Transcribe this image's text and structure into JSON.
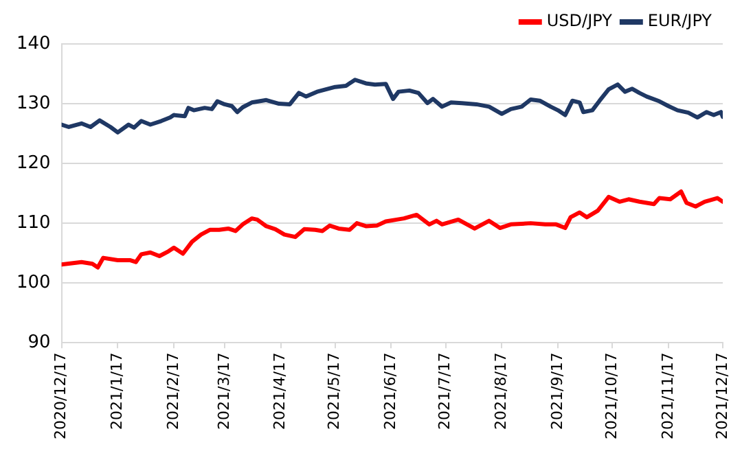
{
  "chart_data": {
    "type": "line",
    "ylim": [
      90,
      140
    ],
    "yticks": [
      90,
      100,
      110,
      120,
      130,
      140
    ],
    "xlim": [
      "2020-12-17",
      "2021-12-17"
    ],
    "xticks": [
      {
        "value": "2020-12-17",
        "label": "2020/12/17"
      },
      {
        "value": "2021-01-17",
        "label": "2021/1/17"
      },
      {
        "value": "2021-02-17",
        "label": "2021/2/17"
      },
      {
        "value": "2021-03-17",
        "label": "2021/3/17"
      },
      {
        "value": "2021-04-17",
        "label": "2021/4/17"
      },
      {
        "value": "2021-05-17",
        "label": "2021/5/17"
      },
      {
        "value": "2021-06-17",
        "label": "2021/6/17"
      },
      {
        "value": "2021-07-17",
        "label": "2021/7/17"
      },
      {
        "value": "2021-08-17",
        "label": "2021/8/17"
      },
      {
        "value": "2021-09-17",
        "label": "2021/9/17"
      },
      {
        "value": "2021-10-17",
        "label": "2021/10/17"
      },
      {
        "value": "2021-11-17",
        "label": "2021/11/17"
      },
      {
        "value": "2021-12-17",
        "label": "2021/12/17"
      }
    ],
    "grid": "y",
    "legend": "top right",
    "marker": "none",
    "line_style": "solid",
    "series": [
      {
        "name": "USD/JPY",
        "color": "#ff0000",
        "x": [
          "2020-12-17",
          "2020-12-28",
          "2021-01-03",
          "2021-01-06",
          "2021-01-09",
          "2021-01-17",
          "2021-01-24",
          "2021-01-27",
          "2021-01-30",
          "2021-02-04",
          "2021-02-09",
          "2021-02-14",
          "2021-02-17",
          "2021-02-22",
          "2021-02-27",
          "2021-03-04",
          "2021-03-09",
          "2021-03-14",
          "2021-03-19",
          "2021-03-23",
          "2021-03-27",
          "2021-04-01",
          "2021-04-04",
          "2021-04-09",
          "2021-04-14",
          "2021-04-19",
          "2021-04-25",
          "2021-04-30",
          "2021-05-06",
          "2021-05-10",
          "2021-05-14",
          "2021-05-19",
          "2021-05-25",
          "2021-05-29",
          "2021-06-03",
          "2021-06-09",
          "2021-06-14",
          "2021-06-20",
          "2021-06-24",
          "2021-07-01",
          "2021-07-08",
          "2021-07-12",
          "2021-07-15",
          "2021-07-24",
          "2021-08-02",
          "2021-08-10",
          "2021-08-16",
          "2021-08-22",
          "2021-09-02",
          "2021-09-10",
          "2021-09-16",
          "2021-09-21",
          "2021-09-24",
          "2021-09-29",
          "2021-10-03",
          "2021-10-09",
          "2021-10-15",
          "2021-10-21",
          "2021-10-26",
          "2021-11-01",
          "2021-11-09",
          "2021-11-12",
          "2021-11-18",
          "2021-11-24",
          "2021-11-27",
          "2021-12-02",
          "2021-12-07",
          "2021-12-14",
          "2021-12-17"
        ],
        "values": [
          103.1,
          103.5,
          103.2,
          102.6,
          104.2,
          103.8,
          103.8,
          103.5,
          104.8,
          105.1,
          104.5,
          105.3,
          105.9,
          104.9,
          106.9,
          108.1,
          108.9,
          108.9,
          109.1,
          108.7,
          109.8,
          110.8,
          110.6,
          109.5,
          109.0,
          108.1,
          107.7,
          109.0,
          108.9,
          108.7,
          109.6,
          109.1,
          108.9,
          110.0,
          109.5,
          109.6,
          110.3,
          110.6,
          110.8,
          111.4,
          109.8,
          110.4,
          109.8,
          110.6,
          109.1,
          110.4,
          109.2,
          109.8,
          110.0,
          109.8,
          109.8,
          109.2,
          111.0,
          111.8,
          111.0,
          112.1,
          114.4,
          113.6,
          114.0,
          113.6,
          113.2,
          114.2,
          114.0,
          115.3,
          113.4,
          112.8,
          113.6,
          114.2,
          113.6
        ]
      },
      {
        "name": "EUR/JPY",
        "color": "#1f3864",
        "x": [
          "2020-12-17",
          "2020-12-21",
          "2020-12-28",
          "2021-01-02",
          "2021-01-07",
          "2021-01-13",
          "2021-01-17",
          "2021-01-23",
          "2021-01-26",
          "2021-01-30",
          "2021-02-04",
          "2021-02-10",
          "2021-02-15",
          "2021-02-17",
          "2021-02-23",
          "2021-02-25",
          "2021-02-28",
          "2021-03-06",
          "2021-03-10",
          "2021-03-13",
          "2021-03-17",
          "2021-03-21",
          "2021-03-24",
          "2021-03-27",
          "2021-04-01",
          "2021-04-09",
          "2021-04-16",
          "2021-04-22",
          "2021-04-27",
          "2021-05-01",
          "2021-05-07",
          "2021-05-12",
          "2021-05-17",
          "2021-05-23",
          "2021-05-28",
          "2021-06-03",
          "2021-06-08",
          "2021-06-14",
          "2021-06-18",
          "2021-06-21",
          "2021-06-27",
          "2021-07-02",
          "2021-07-07",
          "2021-07-10",
          "2021-07-15",
          "2021-07-20",
          "2021-07-26",
          "2021-08-03",
          "2021-08-10",
          "2021-08-17",
          "2021-08-22",
          "2021-08-28",
          "2021-09-02",
          "2021-09-07",
          "2021-09-13",
          "2021-09-17",
          "2021-09-21",
          "2021-09-25",
          "2021-09-29",
          "2021-10-01",
          "2021-10-06",
          "2021-10-10",
          "2021-10-15",
          "2021-10-20",
          "2021-10-24",
          "2021-10-28",
          "2021-11-01",
          "2021-11-05",
          "2021-11-12",
          "2021-11-17",
          "2021-11-22",
          "2021-11-28",
          "2021-12-03",
          "2021-12-08",
          "2021-12-12",
          "2021-12-16",
          "2021-12-17"
        ],
        "values": [
          126.5,
          126.1,
          126.7,
          126.1,
          127.2,
          126.1,
          125.2,
          126.5,
          126.0,
          127.1,
          126.5,
          127.1,
          127.7,
          128.1,
          127.9,
          129.3,
          128.9,
          129.3,
          129.1,
          130.4,
          129.9,
          129.6,
          128.6,
          129.4,
          130.2,
          130.6,
          130.0,
          129.9,
          131.8,
          131.2,
          132.0,
          132.4,
          132.8,
          133.0,
          134.0,
          133.4,
          133.2,
          133.3,
          130.8,
          132.0,
          132.2,
          131.8,
          130.1,
          130.8,
          129.5,
          130.2,
          130.1,
          129.9,
          129.5,
          128.3,
          129.1,
          129.5,
          130.7,
          130.5,
          129.5,
          128.9,
          128.1,
          130.5,
          130.2,
          128.6,
          128.9,
          130.5,
          132.4,
          133.2,
          132.0,
          132.5,
          131.8,
          131.2,
          130.4,
          129.6,
          128.9,
          128.5,
          127.7,
          128.6,
          128.1,
          128.6,
          127.8
        ]
      }
    ]
  }
}
